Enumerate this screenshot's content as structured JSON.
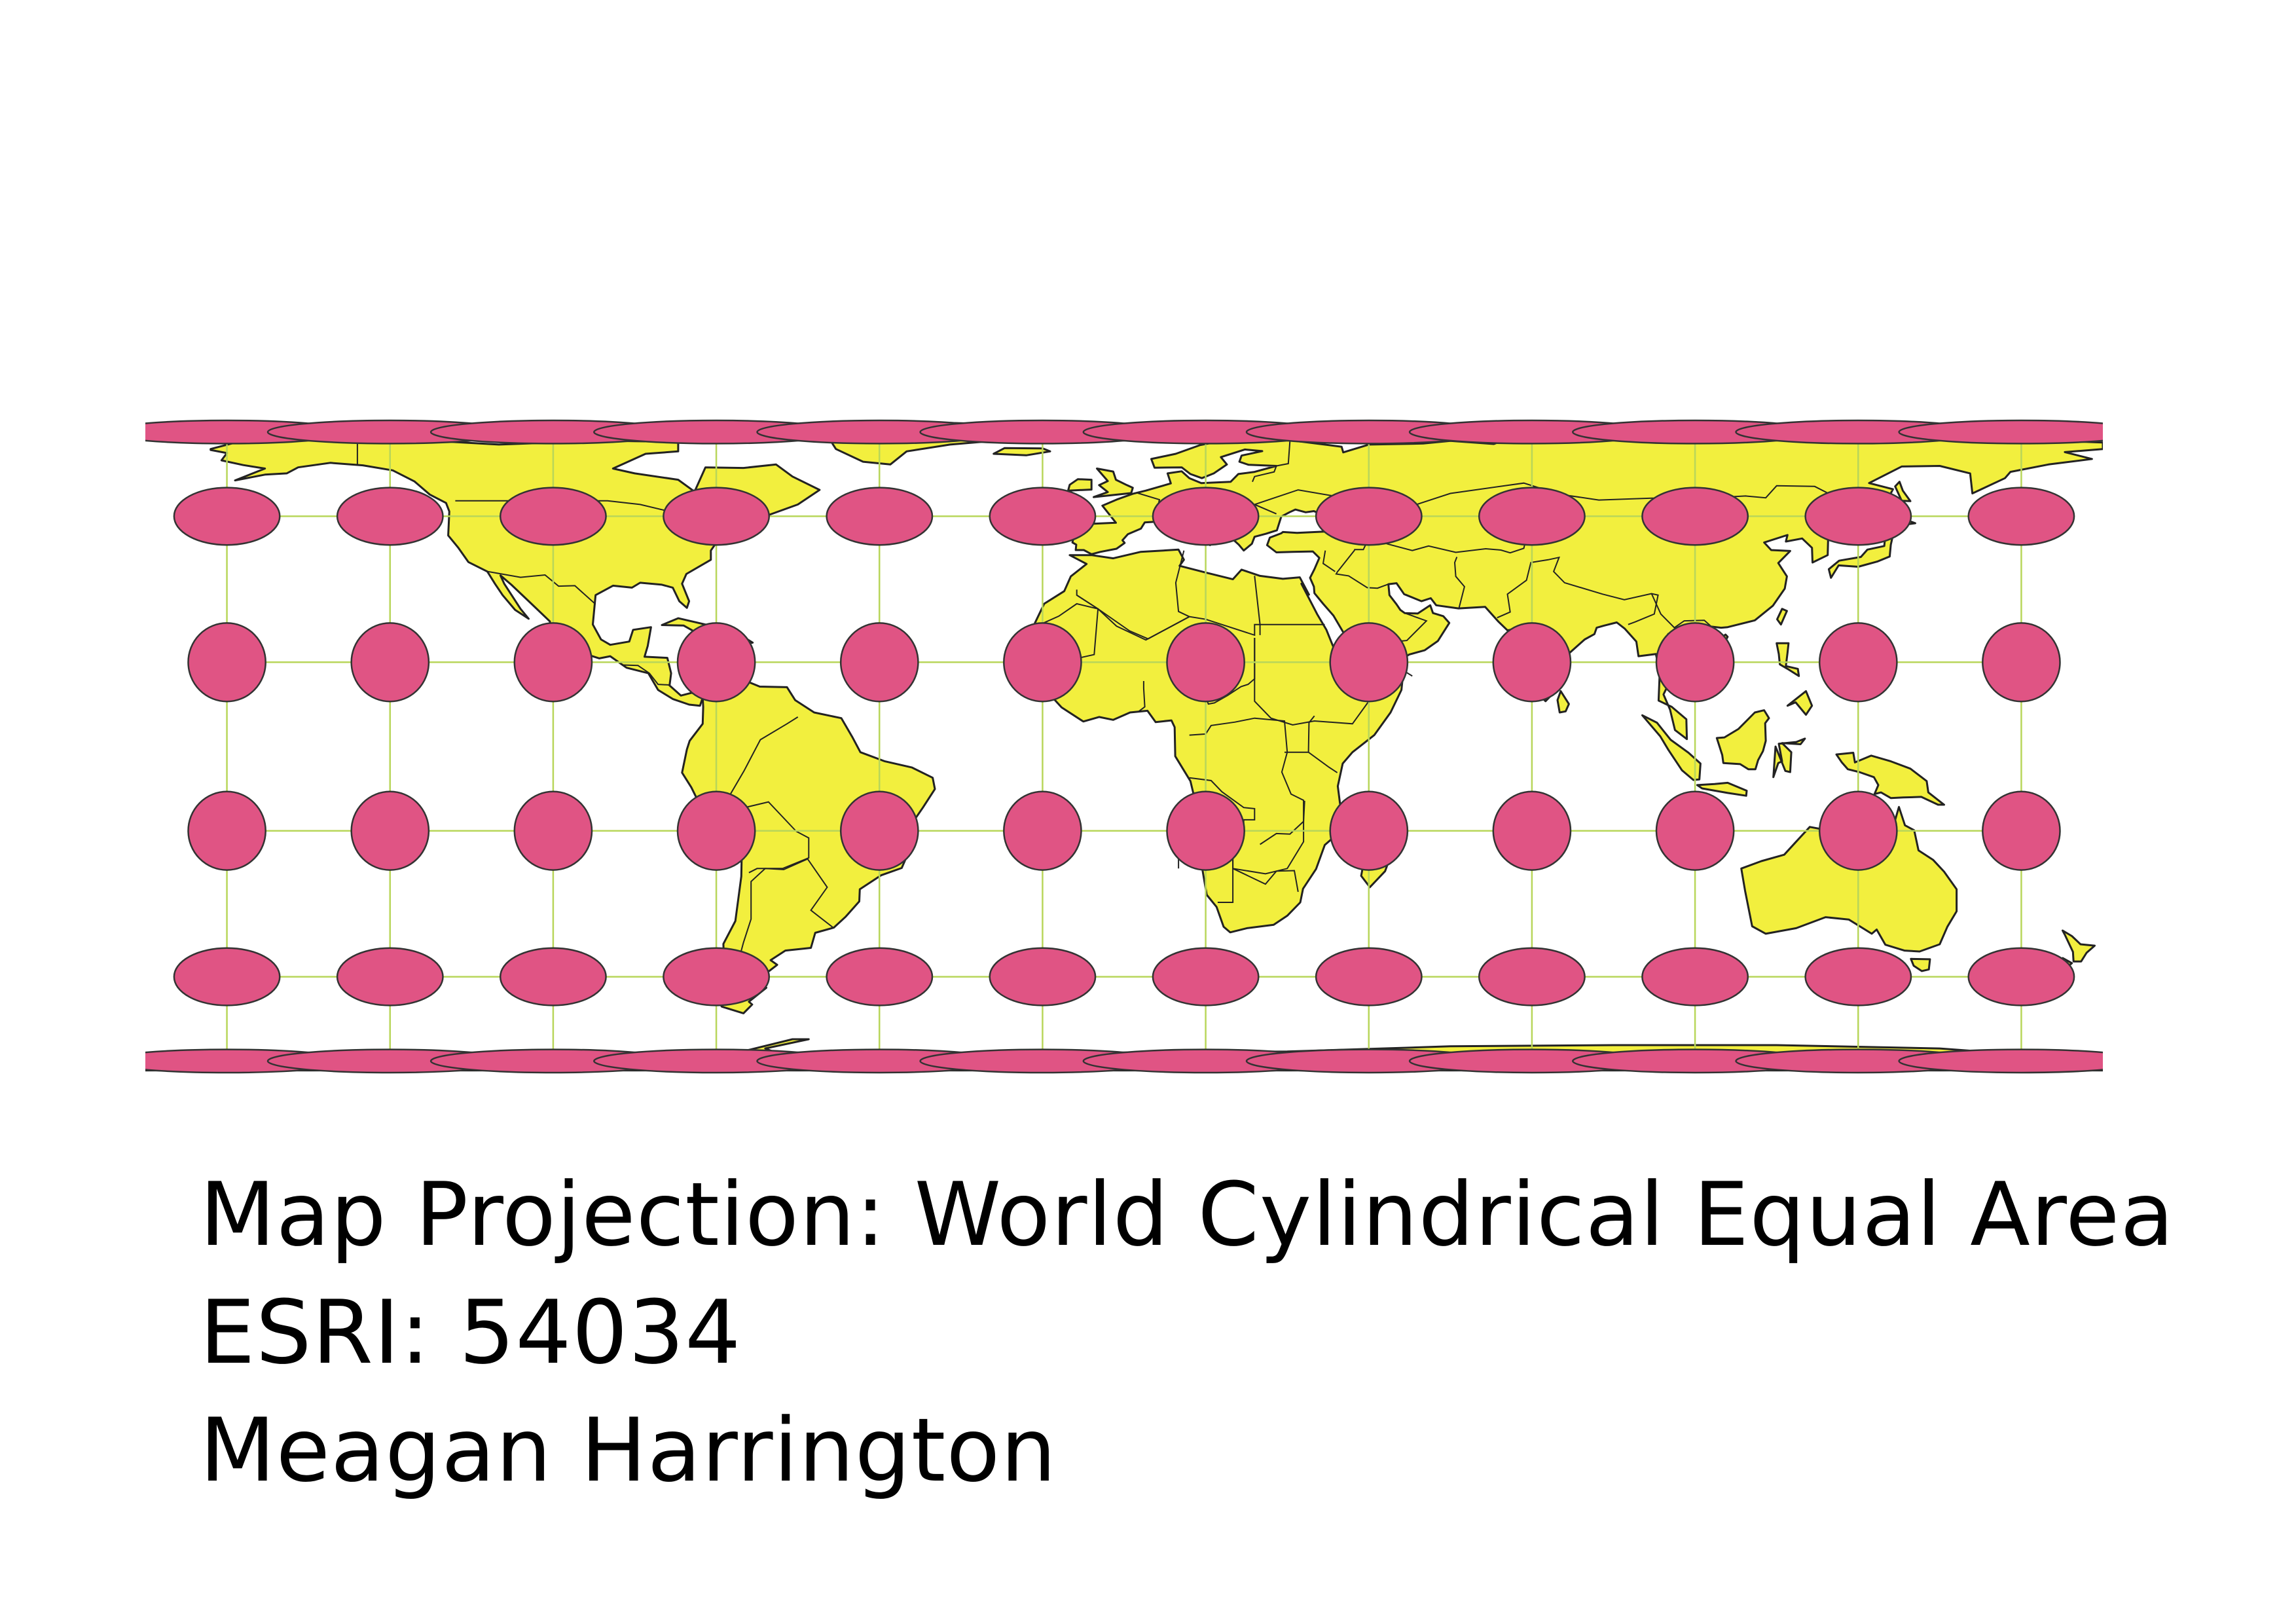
{
  "map": {
    "projection_name": "World Cylindrical Equal Area",
    "epsg_code": "ESRI: 54034",
    "graticule_spacing_degrees": 30,
    "colors": {
      "land": "#f2ef3e",
      "outline": "#222222",
      "graticule": "#b8d65a",
      "indicatrix": "#e05484",
      "background": "#ffffff"
    },
    "indicatrix_grid": {
      "longitudes": [
        -165,
        -135,
        -105,
        -75,
        -45,
        -15,
        15,
        45,
        75,
        105,
        135
      ],
      "latitudes": [
        75,
        45,
        15,
        -15,
        -45,
        -75
      ]
    }
  },
  "caption": {
    "line1": "Map Projection: World Cylindrical Equal Area",
    "line2": "ESRI: 54034",
    "line3": "Meagan Harrington"
  }
}
